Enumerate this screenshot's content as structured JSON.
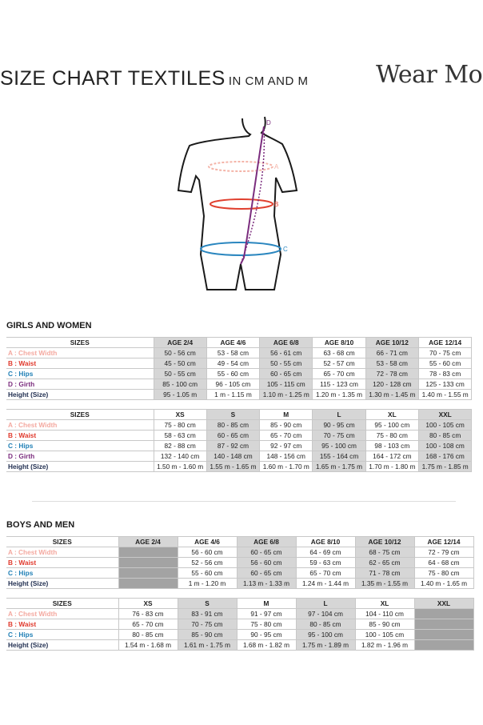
{
  "header": {
    "title": "SIZE CHART TEXTILES",
    "subtitle": "IN CM AND M",
    "brand": "Wear Moi"
  },
  "diagram": {
    "labels": [
      "D",
      "A",
      "B",
      "C"
    ]
  },
  "sections": [
    {
      "title": "GIRLS AND WOMEN",
      "tables": [
        {
          "header": [
            "SIZES",
            "AGE 2/4",
            "AGE 4/6",
            "AGE 6/8",
            "AGE 8/10",
            "AGE 10/12",
            "AGE 12/14"
          ],
          "rows": [
            [
              "A : Chest Width",
              "50 - 56 cm",
              "53 - 58 cm",
              "56 - 61 cm",
              "63 - 68 cm",
              "66 - 71 cm",
              "70 - 75 cm"
            ],
            [
              "B : Waist",
              "45 - 50 cm",
              "49 - 54 cm",
              "50 - 55 cm",
              "52 - 57 cm",
              "53 - 58 cm",
              "55 - 60 cm"
            ],
            [
              "C : Hips",
              "50 - 55 cm",
              "55 - 60 cm",
              "60 - 65 cm",
              "65 - 70 cm",
              "72 - 78 cm",
              "78 - 83 cm"
            ],
            [
              "D : Girth",
              "85 - 100 cm",
              "96 - 105 cm",
              "105 - 115 cm",
              "115 - 123 cm",
              "120 - 128 cm",
              "125 - 133 cm"
            ],
            [
              "Height (Size)",
              "95 - 1.05 m",
              "1 m - 1.15 m",
              "1.10 m - 1.25 m",
              "1.20 m - 1.35 m",
              "1.30 m - 1.45 m",
              "1.40 m - 1.55 m"
            ]
          ]
        },
        {
          "header": [
            "SIZES",
            "XS",
            "S",
            "M",
            "L",
            "XL",
            "XXL"
          ],
          "rows": [
            [
              "A : Chest Width",
              "75 - 80 cm",
              "80 - 85 cm",
              "85 - 90 cm",
              "90 - 95 cm",
              "95 - 100 cm",
              "100 - 105 cm"
            ],
            [
              "B : Waist",
              "58 - 63 cm",
              "60 - 65 cm",
              "65 - 70 cm",
              "70 - 75 cm",
              "75 - 80 cm",
              "80 - 85 cm"
            ],
            [
              "C : Hips",
              "82 - 88 cm",
              "87 - 92 cm",
              "92 - 97 cm",
              "95 - 100 cm",
              "98 - 103 cm",
              "100 - 108 cm"
            ],
            [
              "D : Girth",
              "132 - 140 cm",
              "140 - 148 cm",
              "148 - 156 cm",
              "155 - 164 cm",
              "164 - 172 cm",
              "168 - 176 cm"
            ],
            [
              "Height (Size)",
              "1.50 m - 1.60 m",
              "1.55 m - 1.65 m",
              "1.60 m - 1.70 m",
              "1.65 m - 1.75 m",
              "1.70 m - 1.80 m",
              "1.75 m - 1.85 m"
            ]
          ]
        }
      ]
    },
    {
      "title": "BOYS AND MEN",
      "tables": [
        {
          "header": [
            "SIZES",
            "AGE 2/4",
            "AGE 4/6",
            "AGE 6/8",
            "AGE 8/10",
            "AGE 10/12",
            "AGE 12/14"
          ],
          "rows": [
            [
              "A : Chest Width",
              null,
              "56 - 60 cm",
              "60 - 65 cm",
              "64 - 69 cm",
              "68 - 75 cm",
              "72 - 79 cm"
            ],
            [
              "B : Waist",
              null,
              "52 - 56 cm",
              "56 - 60 cm",
              "59 - 63 cm",
              "62 - 65 cm",
              "64 - 68 cm"
            ],
            [
              "C : Hips",
              null,
              "55 - 60 cm",
              "60 - 65 cm",
              "65 - 70 cm",
              "71 - 78 cm",
              "75 - 80 cm"
            ],
            [
              "Height (Size)",
              null,
              "1 m - 1.20 m",
              "1.13 m - 1.33 m",
              "1.24 m - 1.44 m",
              "1.35 m - 1.55 m",
              "1.40 m - 1.65 m"
            ]
          ]
        },
        {
          "header": [
            "SIZES",
            "XS",
            "S",
            "M",
            "L",
            "XL",
            "XXL"
          ],
          "rows": [
            [
              "A : Chest Width",
              "76 - 83 cm",
              "83 - 91 cm",
              "91 - 97 cm",
              "97 - 104 cm",
              "104 - 110 cm",
              null
            ],
            [
              "B : Waist",
              "65 - 70 cm",
              "70 - 75 cm",
              "75 - 80 cm",
              "80 - 85 cm",
              "85 - 90 cm",
              null
            ],
            [
              "C : Hips",
              "80 - 85 cm",
              "85 - 90 cm",
              "90 - 95 cm",
              "95 - 100 cm",
              "100 - 105 cm",
              null
            ],
            [
              "Height (Size)",
              "1.54 m - 1.68 m",
              "1.61 m - 1.75 m",
              "1.68 m - 1.82 m",
              "1.75 m - 1.89 m",
              "1.82 m - 1.96 m",
              null
            ]
          ]
        }
      ]
    }
  ]
}
